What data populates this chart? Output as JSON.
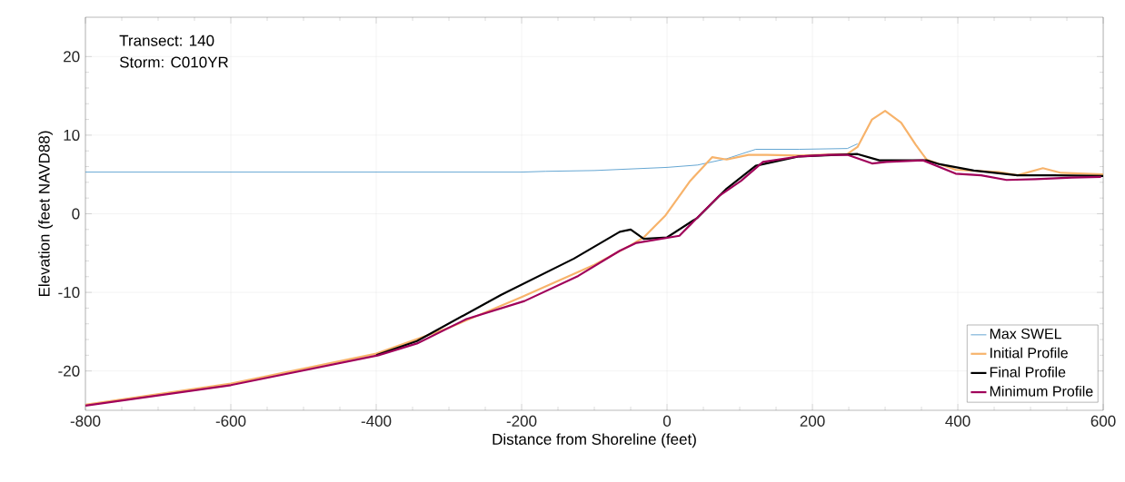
{
  "chart_data": {
    "type": "line",
    "xlabel": "Distance from Shoreline (feet)",
    "ylabel": "Elevation (feet NAVD88)",
    "annotations": [
      "Transect: 140",
      "Storm: C010YR"
    ],
    "xlim": [
      -800,
      600
    ],
    "ylim": [
      -25,
      25
    ],
    "xticks": [
      -800,
      -600,
      -400,
      -200,
      0,
      200,
      400,
      600
    ],
    "yticks": [
      -20,
      -10,
      0,
      10,
      20
    ],
    "grid": true,
    "legend": "bottom right",
    "series": [
      {
        "name": "Max SWEL",
        "color": "#3d8fc6",
        "x": [
          -800,
          -600,
          -400,
          -200,
          -167,
          -100,
          -50,
          0,
          42,
          82,
          122,
          182,
          248,
          262
        ],
        "values": [
          5.3,
          5.3,
          5.3,
          5.3,
          5.4,
          5.5,
          5.7,
          5.9,
          6.2,
          7.0,
          8.2,
          8.2,
          8.3,
          8.9
        ]
      },
      {
        "name": "Initial Profile",
        "color": "#f7b36b",
        "x": [
          -800,
          -600,
          -400,
          -300,
          -200,
          -100,
          -50,
          -32,
          -2,
          32,
          62,
          82,
          112,
          137,
          182,
          248,
          262,
          282,
          300,
          322,
          342,
          357,
          397,
          457,
          482,
          517,
          542,
          600
        ],
        "values": [
          -24.3,
          -21.6,
          -17.8,
          -14.5,
          -10.6,
          -6.5,
          -4.0,
          -3.0,
          -0.2,
          4.2,
          7.2,
          6.9,
          7.5,
          7.5,
          7.4,
          7.6,
          8.5,
          12.0,
          13.1,
          11.6,
          8.8,
          6.9,
          5.6,
          5.3,
          4.9,
          5.8,
          5.2,
          5.0
        ]
      },
      {
        "name": "Final Profile",
        "color": "#000000",
        "x": [
          -400,
          -344,
          -228,
          -128,
          -65,
          -50,
          -32,
          0,
          42,
          82,
          122,
          182,
          262,
          292,
          357,
          375,
          422,
          482,
          532,
          600
        ],
        "values": [
          -18.0,
          -16.2,
          -10.3,
          -5.7,
          -2.3,
          -2.0,
          -3.2,
          -3.0,
          -0.5,
          3.2,
          6.1,
          7.3,
          7.6,
          6.8,
          6.8,
          6.3,
          5.5,
          4.9,
          4.9,
          4.8
        ]
      },
      {
        "name": "Minimum Profile",
        "color": "#a0005a",
        "x": [
          -800,
          -600,
          -397,
          -344,
          -276,
          -196,
          -122,
          -65,
          -42,
          17,
          32,
          72,
          102,
          132,
          182,
          222,
          248,
          282,
          302,
          352,
          397,
          432,
          467,
          507,
          557,
          597
        ],
        "values": [
          -24.4,
          -21.8,
          -18.0,
          -16.5,
          -13.4,
          -11.1,
          -7.9,
          -4.7,
          -3.7,
          -2.8,
          -1.4,
          2.3,
          4.2,
          6.6,
          7.3,
          7.5,
          7.5,
          6.4,
          6.6,
          6.8,
          5.1,
          4.9,
          4.3,
          4.4,
          4.6,
          4.7
        ]
      }
    ]
  }
}
